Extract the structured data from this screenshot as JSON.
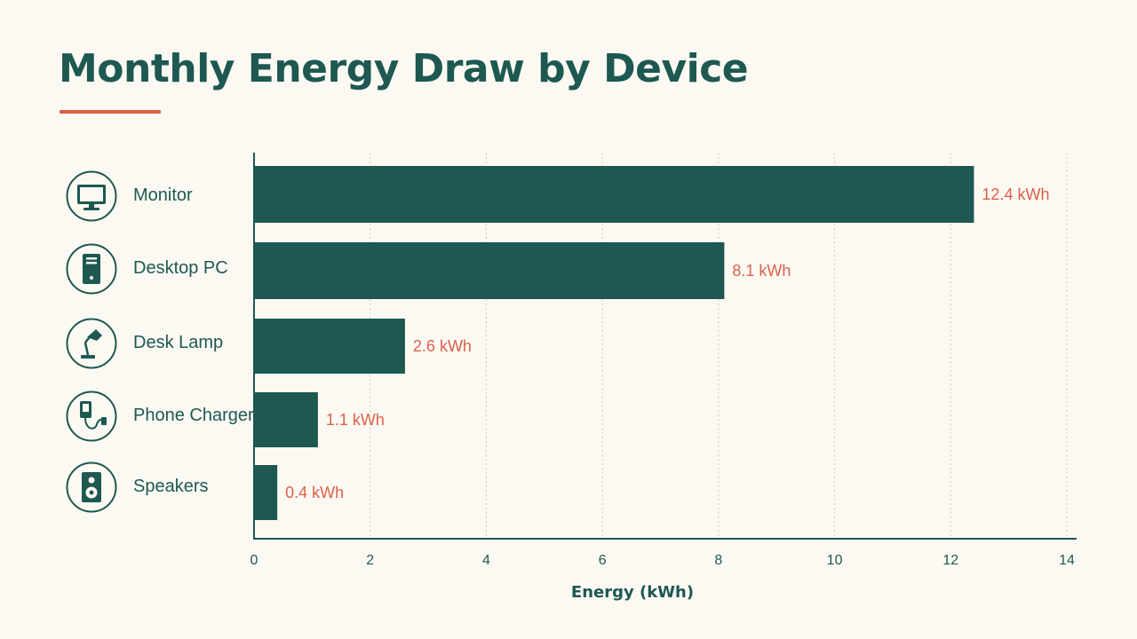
{
  "page": {
    "title": "Monthly Energy Draw by Device"
  },
  "colors": {
    "background": "#fcf9f3",
    "primary": "#1d5851",
    "accent": "#de6048",
    "grid": "#c9c9c4"
  },
  "devices": [
    {
      "label": "Monitor",
      "icon": "monitor-icon"
    },
    {
      "label": "Desktop PC",
      "icon": "desktop-tower-icon"
    },
    {
      "label": "Desk Lamp",
      "icon": "desk-lamp-icon"
    },
    {
      "label": "Phone Charger",
      "icon": "phone-charger-icon"
    },
    {
      "label": "Speakers",
      "icon": "speaker-icon"
    }
  ],
  "chart_data": {
    "type": "bar",
    "orientation": "horizontal",
    "title": "Monthly Energy Draw by Device",
    "categories": [
      "Monitor",
      "Desktop PC",
      "Desk Lamp",
      "Phone Charger",
      "Speakers"
    ],
    "values": [
      12.4,
      8.1,
      2.6,
      1.1,
      0.4
    ],
    "value_labels": [
      "12.4 kWh",
      "8.1 kWh",
      "2.6 kWh",
      "1.1 kWh",
      "0.4 kWh"
    ],
    "xlabel": "Energy (kWh)",
    "ylabel": "",
    "xlim": [
      0,
      14
    ],
    "xticks": [
      0,
      2,
      4,
      6,
      8,
      10,
      12,
      14
    ],
    "grid": "vertical dashed",
    "legend": "none"
  }
}
